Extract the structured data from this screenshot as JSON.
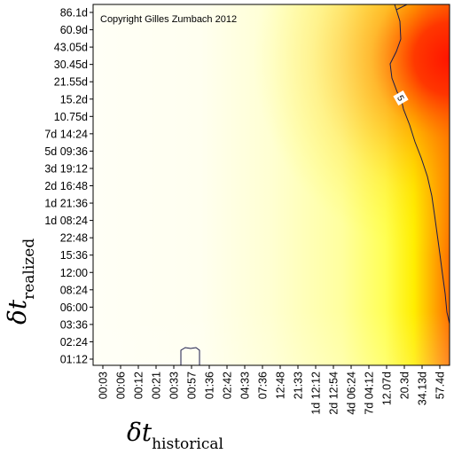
{
  "chart_data": {
    "type": "heatmap",
    "title": "",
    "annotation": "Copyright Gilles Zumbach 2012",
    "xlabel": {
      "symbol": "δt",
      "subscript": "historical"
    },
    "ylabel": {
      "symbol": "δt",
      "subscript": "realized"
    },
    "x_ticks": [
      "00:03",
      "00:06",
      "00:12",
      "00:21",
      "00:33",
      "00:57",
      "01:36",
      "02:42",
      "04:33",
      "07:36",
      "12:48",
      "21:33",
      "1d 12:12",
      "2d 12:54",
      "4d 06:24",
      "7d 04:12",
      "12.07d",
      "20.3d",
      "34.13d",
      "57.4d"
    ],
    "y_ticks": [
      "01:12",
      "02:24",
      "03:36",
      "06:00",
      "08:24",
      "12:00",
      "15:36",
      "22:48",
      "1d 08:24",
      "1d 21:36",
      "2d 16:48",
      "3d 19:12",
      "5d 09:36",
      "7d 14:24",
      "10.75d",
      "15.2d",
      "21.55d",
      "30.45d",
      "43.05d",
      "60.9d",
      "86.1d"
    ],
    "colormap": [
      "#ffffff",
      "#ffff80",
      "#ffff00",
      "#ff8000",
      "#ff0000"
    ],
    "contours": [
      {
        "level": "5",
        "label": "5"
      }
    ]
  }
}
